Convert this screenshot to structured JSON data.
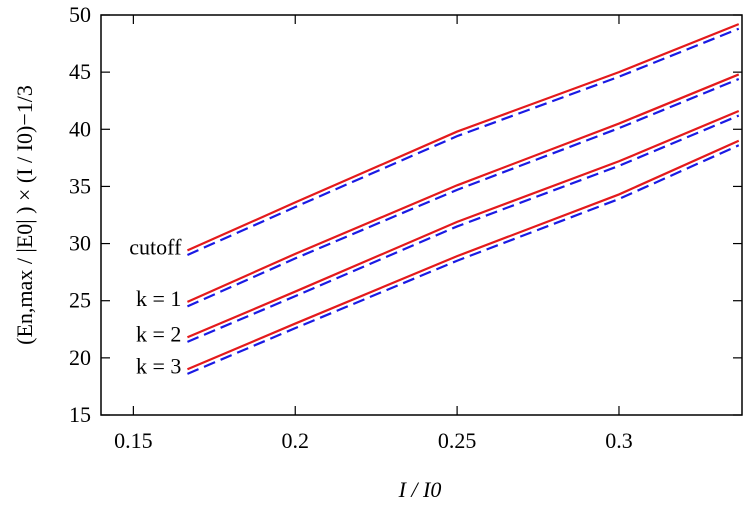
{
  "chart_data": {
    "type": "line",
    "xlabel": "I / I0",
    "ylabel": "(En,max / |E0| ) × (I / I0)−1/3",
    "x": [
      0.1667,
      0.2,
      0.25,
      0.3,
      0.337
    ],
    "series": [
      {
        "name": "cutoff",
        "color": "#e41a1c",
        "dash": false,
        "values": [
          29.4,
          33.6,
          39.8,
          45.0,
          49.2
        ]
      },
      {
        "color": "#1a1ae4",
        "dash": true,
        "values": [
          29.0,
          33.2,
          39.4,
          44.6,
          48.8
        ]
      },
      {
        "name": "k = 1",
        "color": "#e41a1c",
        "dash": false,
        "values": [
          24.9,
          29.1,
          35.1,
          40.5,
          44.8
        ]
      },
      {
        "color": "#1a1ae4",
        "dash": true,
        "values": [
          24.5,
          28.7,
          34.7,
          40.1,
          44.4
        ]
      },
      {
        "name": "k = 2",
        "color": "#e41a1c",
        "dash": false,
        "values": [
          21.8,
          25.8,
          31.9,
          37.2,
          41.6
        ]
      },
      {
        "color": "#1a1ae4",
        "dash": true,
        "values": [
          21.4,
          25.4,
          31.5,
          36.8,
          41.2
        ]
      },
      {
        "name": "k = 3",
        "color": "#e41a1c",
        "dash": false,
        "values": [
          19.0,
          23.0,
          28.9,
          34.3,
          39.0
        ]
      },
      {
        "color": "#1a1ae4",
        "dash": true,
        "values": [
          18.6,
          22.6,
          28.5,
          33.9,
          38.6
        ]
      }
    ],
    "xlim": [
      0.14,
      0.338
    ],
    "xticks": [
      0.15,
      0.2,
      0.25,
      0.3
    ],
    "ylim": [
      15,
      50
    ],
    "yticks": [
      15,
      20,
      25,
      30,
      35,
      40,
      45,
      50
    ],
    "grid": false
  }
}
